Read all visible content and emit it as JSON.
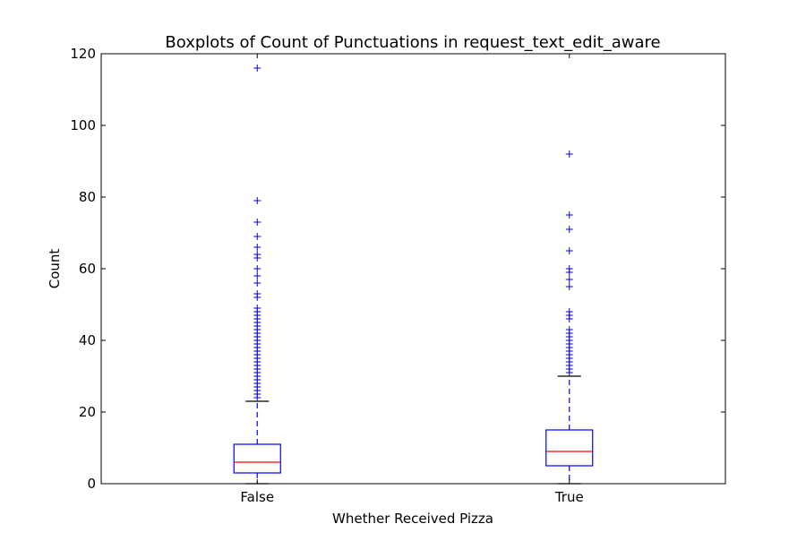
{
  "chart_data": {
    "type": "box",
    "title": "Boxplots of Count of Punctuations in request_text_edit_aware",
    "xlabel": "Whether Received Pizza",
    "ylabel": "Count",
    "ylim": [
      0,
      120
    ],
    "y_ticks": [
      0,
      20,
      40,
      60,
      80,
      100,
      120
    ],
    "grid": false,
    "categories": [
      "False",
      "True"
    ],
    "boxes": [
      {
        "category": "False",
        "q1": 3,
        "median": 6,
        "q3": 11,
        "whisker_low": 0,
        "whisker_high": 23,
        "outliers": [
          24,
          25,
          26,
          27,
          28,
          29,
          30,
          31,
          32,
          33,
          34,
          35,
          36,
          37,
          38,
          39,
          40,
          41,
          42,
          43,
          44,
          45,
          46,
          47,
          48,
          49,
          52,
          53,
          56,
          58,
          60,
          63,
          64,
          66,
          69,
          73,
          79,
          116
        ]
      },
      {
        "category": "True",
        "q1": 5,
        "median": 9,
        "q3": 15,
        "whisker_low": 0,
        "whisker_high": 30,
        "outliers": [
          31,
          32,
          33,
          34,
          35,
          36,
          37,
          38,
          39,
          40,
          41,
          42,
          43,
          46,
          47,
          48,
          55,
          57,
          59,
          60,
          65,
          71,
          75,
          92
        ]
      }
    ],
    "colors": {
      "box": "#0000ff",
      "median": "#ff0000",
      "whisker": "#0000ff",
      "cap": "#000000",
      "outlier": "#0000ff"
    }
  }
}
